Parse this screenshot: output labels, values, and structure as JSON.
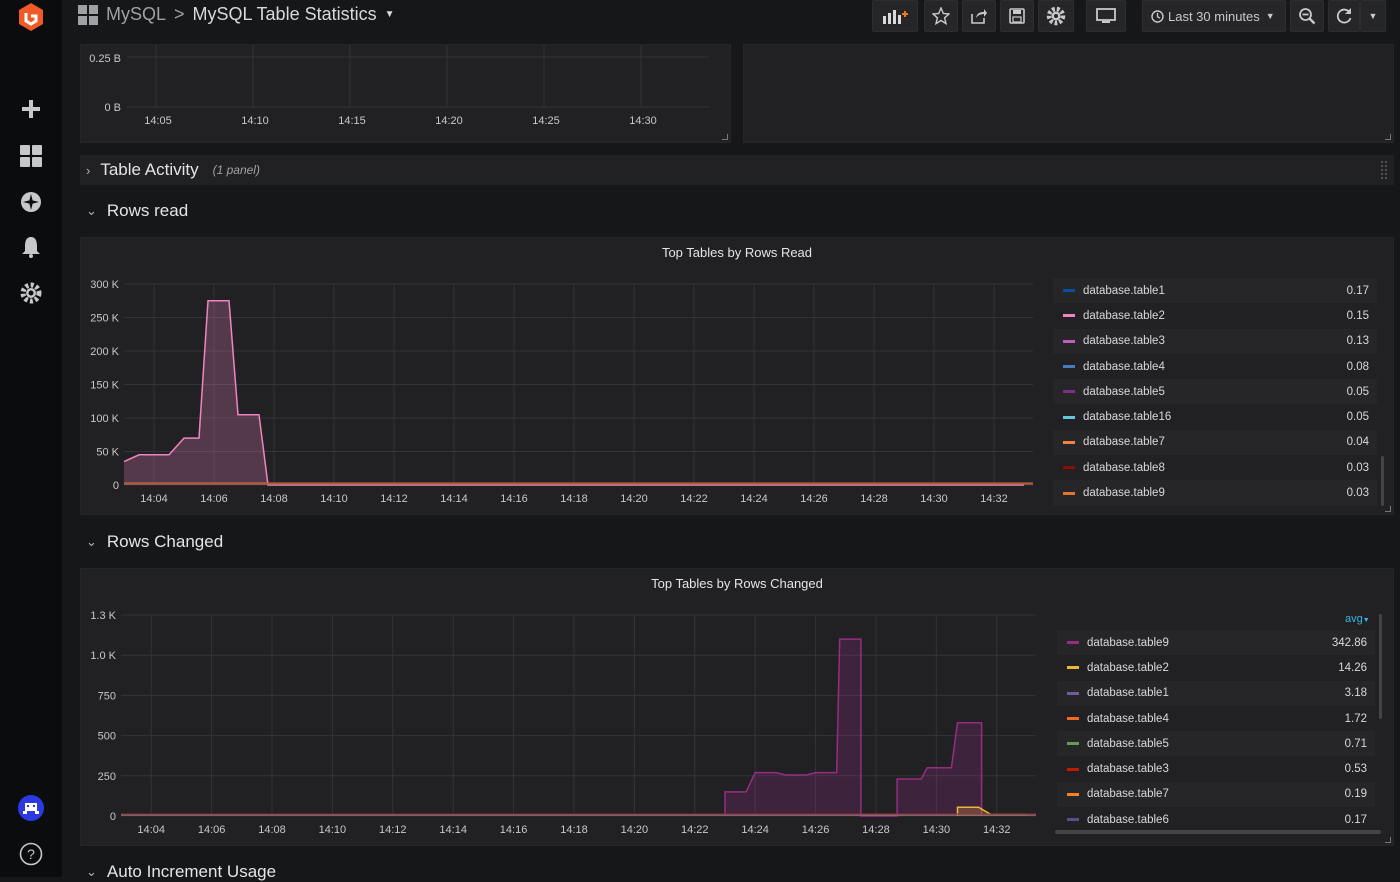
{
  "breadcrumb": {
    "folder": "MySQL",
    "separator": ">",
    "title": "MySQL Table Statistics"
  },
  "toolbar": {
    "time_range": "Last 30 minutes"
  },
  "top_panel": {
    "y_ticks": [
      "0.25 B",
      "0 B"
    ],
    "x_ticks": [
      "14:05",
      "14:10",
      "14:15",
      "14:20",
      "14:25",
      "14:30"
    ]
  },
  "rows": {
    "table_activity": {
      "title": "Table Activity",
      "panel_count": "(1 panel)"
    },
    "rows_read": {
      "title": "Rows read"
    },
    "rows_changed": {
      "title": "Rows Changed"
    },
    "auto_increment": {
      "title": "Auto Increment Usage"
    }
  },
  "colors": {
    "accent": "#f05a28",
    "link": "#33b5e5"
  },
  "chart_data": [
    {
      "type": "area",
      "title": "Top Tables by Rows Read",
      "y_ticks": [
        "300 K",
        "250 K",
        "200 K",
        "150 K",
        "100 K",
        "50 K",
        "0"
      ],
      "ylim": [
        0,
        300000
      ],
      "x_ticks": [
        "14:04",
        "14:06",
        "14:08",
        "14:10",
        "14:12",
        "14:14",
        "14:16",
        "14:18",
        "14:20",
        "14:22",
        "14:24",
        "14:26",
        "14:28",
        "14:30",
        "14:32"
      ],
      "series": [
        {
          "name": "database.table1",
          "color": "#0a50a1",
          "value": "0.17",
          "points": []
        },
        {
          "name": "database.table2",
          "color": "#ef84c1",
          "value": "0.15",
          "points": [
            [
              "14:03",
              35000
            ],
            [
              "14:03.5",
              45000
            ],
            [
              "14:04.5",
              45000
            ],
            [
              "14:05",
              70000
            ],
            [
              "14:05.5",
              70000
            ],
            [
              "14:05.8",
              275000
            ],
            [
              "14:06.5",
              275000
            ],
            [
              "14:06.8",
              105000
            ],
            [
              "14:07.5",
              105000
            ],
            [
              "14:07.8",
              0
            ],
            [
              "14:33",
              0
            ]
          ]
        },
        {
          "name": "database.table3",
          "color": "#c15dbd",
          "value": "0.13",
          "points": []
        },
        {
          "name": "database.table4",
          "color": "#447ebc",
          "value": "0.08",
          "points": []
        },
        {
          "name": "database.table5",
          "color": "#7e2e86",
          "value": "0.05",
          "points": []
        },
        {
          "name": "database.table16",
          "color": "#65c5db",
          "value": "0.05",
          "points": []
        },
        {
          "name": "database.table7",
          "color": "#ef843c",
          "value": "0.04",
          "points": []
        },
        {
          "name": "database.table8",
          "color": "#890f02",
          "value": "0.03",
          "points": []
        },
        {
          "name": "database.table9",
          "color": "#e0752d",
          "value": "0.03",
          "points": []
        }
      ]
    },
    {
      "type": "area",
      "title": "Top Tables by Rows Changed",
      "legend_header": "avg",
      "y_ticks": [
        "1.3 K",
        "1.0 K",
        "750",
        "500",
        "250",
        "0"
      ],
      "ylim": [
        0,
        1250
      ],
      "x_ticks": [
        "14:04",
        "14:06",
        "14:08",
        "14:10",
        "14:12",
        "14:14",
        "14:16",
        "14:18",
        "14:20",
        "14:22",
        "14:24",
        "14:26",
        "14:28",
        "14:30",
        "14:32"
      ],
      "series": [
        {
          "name": "database.table9",
          "color": "#962d82",
          "value": "342.86",
          "points": [
            [
              "14:23",
              0
            ],
            [
              "14:23",
              150
            ],
            [
              "14:23.7",
              150
            ],
            [
              "14:24",
              270
            ],
            [
              "14:24.7",
              270
            ],
            [
              "14:25",
              255
            ],
            [
              "14:25.7",
              255
            ],
            [
              "14:26",
              270
            ],
            [
              "14:26.7",
              270
            ],
            [
              "14:26.8",
              1100
            ],
            [
              "14:27.5",
              1100
            ],
            [
              "14:27.5",
              0
            ],
            [
              "14:28.7",
              0
            ],
            [
              "14:28.7",
              230
            ],
            [
              "14:29.5",
              230
            ],
            [
              "14:29.7",
              300
            ],
            [
              "14:30.5",
              300
            ],
            [
              "14:30.7",
              580
            ],
            [
              "14:31.5",
              580
            ],
            [
              "14:31.5",
              0
            ]
          ]
        },
        {
          "name": "database.table2",
          "color": "#eab839",
          "value": "14.26",
          "points": [
            [
              "14:30.7",
              0
            ],
            [
              "14:30.7",
              55
            ],
            [
              "14:31.4",
              55
            ],
            [
              "14:31.8",
              10
            ],
            [
              "14:33",
              10
            ]
          ]
        },
        {
          "name": "database.table1",
          "color": "#705da0",
          "value": "3.18",
          "points": []
        },
        {
          "name": "database.table4",
          "color": "#ef6a23",
          "value": "1.72",
          "points": []
        },
        {
          "name": "database.table5",
          "color": "#629e51",
          "value": "0.71",
          "points": []
        },
        {
          "name": "database.table3",
          "color": "#bf1b00",
          "value": "0.53",
          "points": []
        },
        {
          "name": "database.table7",
          "color": "#f9821f",
          "value": "0.19",
          "points": []
        },
        {
          "name": "database.table6",
          "color": "#5a4d8f",
          "value": "0.17",
          "points": []
        }
      ]
    }
  ]
}
